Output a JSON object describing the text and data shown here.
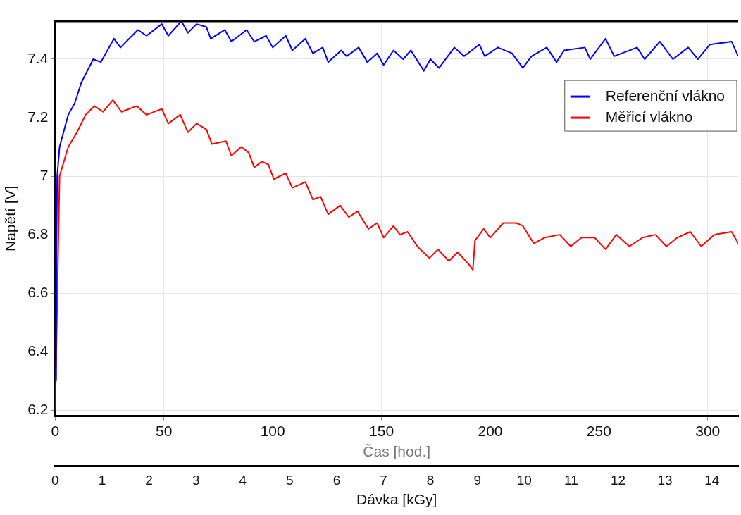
{
  "chart_data": {
    "type": "line",
    "xlabel": "Čas [hod.]",
    "x2label": "Dávka [kGy]",
    "ylabel": "Napětí [V]",
    "xlim": [
      0,
      314
    ],
    "xticks": [
      0,
      50,
      100,
      150,
      200,
      250,
      300
    ],
    "x2lim": [
      0,
      14.56
    ],
    "x2ticks": [
      0,
      1,
      2,
      3,
      4,
      5,
      6,
      7,
      8,
      9,
      10,
      11,
      12,
      13,
      14
    ],
    "ylim": [
      6.18,
      7.53
    ],
    "yticks": [
      6.2,
      6.4,
      6.6,
      6.8,
      7,
      7.2,
      7.4
    ],
    "grid": true,
    "legend": "top right",
    "series": [
      {
        "name": "Referenční vlákno",
        "color": "#0000ff",
        "x": [
          0.4,
          0.6,
          0.9,
          2,
          6,
          9,
          12,
          17.5,
          21,
          27,
          30,
          38,
          42,
          49,
          52,
          58,
          61,
          65,
          69.5,
          71.5,
          78,
          81,
          88,
          91.5,
          97,
          100,
          106,
          109,
          115,
          118.5,
          123,
          125.5,
          131.5,
          134,
          139.5,
          143.5,
          148,
          151,
          155.5,
          160,
          163.5,
          169.5,
          172.5,
          176.5,
          183.5,
          188,
          195,
          197.5,
          203.5,
          210,
          215,
          219,
          226,
          230.5,
          234,
          243.5,
          246,
          253,
          257,
          267.5,
          271,
          278,
          284,
          291,
          295.5,
          301,
          311,
          314
        ],
        "values": [
          6.3,
          6.75,
          7.0,
          7.1,
          7.21,
          7.25,
          7.32,
          7.4,
          7.39,
          7.47,
          7.44,
          7.5,
          7.48,
          7.52,
          7.48,
          7.53,
          7.49,
          7.52,
          7.51,
          7.47,
          7.5,
          7.46,
          7.5,
          7.46,
          7.48,
          7.44,
          7.48,
          7.43,
          7.47,
          7.42,
          7.44,
          7.39,
          7.43,
          7.41,
          7.44,
          7.39,
          7.42,
          7.38,
          7.43,
          7.4,
          7.43,
          7.36,
          7.4,
          7.37,
          7.44,
          7.41,
          7.45,
          7.41,
          7.44,
          7.42,
          7.37,
          7.41,
          7.44,
          7.39,
          7.43,
          7.44,
          7.4,
          7.47,
          7.41,
          7.44,
          7.4,
          7.46,
          7.4,
          7.44,
          7.4,
          7.45,
          7.46,
          7.41
        ]
      },
      {
        "name": "Měřicí vlákno",
        "color": "#ff0000",
        "x": [
          0,
          2,
          6,
          10,
          14,
          18,
          22,
          26.5,
          30.5,
          37.5,
          42,
          49,
          52,
          57.5,
          61,
          65,
          69.5,
          72,
          78.5,
          81,
          85.5,
          89,
          91.5,
          95,
          98,
          100.5,
          106,
          109,
          115,
          118.5,
          122,
          125.5,
          131,
          135,
          139,
          144,
          148,
          151,
          155.5,
          158.5,
          162,
          166.5,
          172,
          176,
          181,
          185,
          190,
          192,
          193,
          197,
          200,
          206,
          212,
          215,
          220,
          225,
          232,
          237,
          242,
          248,
          253,
          258,
          264,
          270,
          276,
          281,
          286,
          292,
          297,
          303,
          311,
          314
        ],
        "values": [
          6.2,
          7.0,
          7.1,
          7.15,
          7.21,
          7.24,
          7.22,
          7.26,
          7.22,
          7.24,
          7.21,
          7.23,
          7.18,
          7.21,
          7.15,
          7.18,
          7.16,
          7.11,
          7.12,
          7.07,
          7.1,
          7.08,
          7.03,
          7.05,
          7.04,
          6.99,
          7.01,
          6.96,
          6.98,
          6.92,
          6.93,
          6.87,
          6.9,
          6.86,
          6.88,
          6.82,
          6.84,
          6.79,
          6.83,
          6.8,
          6.81,
          6.76,
          6.72,
          6.75,
          6.71,
          6.74,
          6.7,
          6.68,
          6.78,
          6.82,
          6.79,
          6.84,
          6.84,
          6.83,
          6.77,
          6.79,
          6.8,
          6.76,
          6.79,
          6.79,
          6.75,
          6.8,
          6.76,
          6.79,
          6.8,
          6.76,
          6.79,
          6.81,
          6.76,
          6.8,
          6.81,
          6.77
        ]
      }
    ]
  }
}
